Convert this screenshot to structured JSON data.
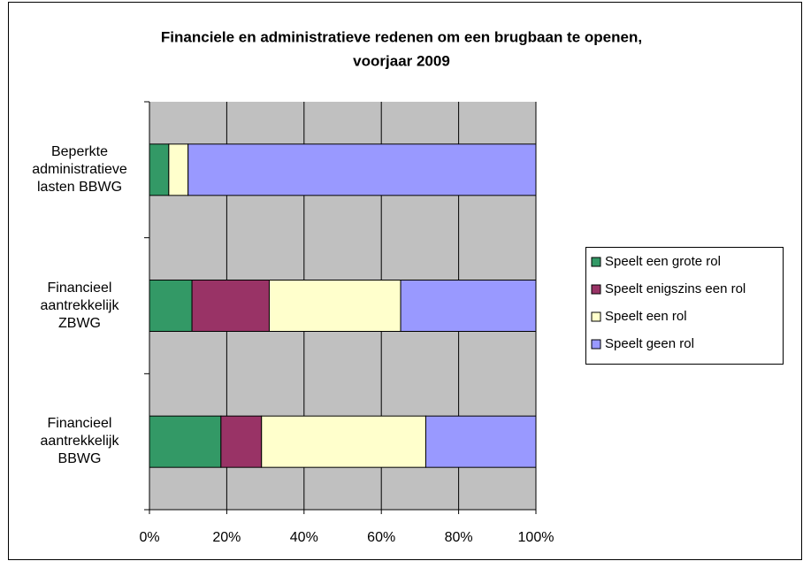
{
  "chart_data": {
    "type": "stacked_barh",
    "title": [
      "Financiele en administratieve redenen om een brugbaan te openen,",
      "voorjaar 2009"
    ],
    "categories": [
      "Beperkte administratieve lasten BBWG",
      "Financieel aantrekkelijk ZBWG",
      "Financieel aantrekkelijk BBWG"
    ],
    "series": [
      {
        "name": "Speelt een grote rol",
        "color": "#339966",
        "values": [
          5,
          11,
          18.5
        ]
      },
      {
        "name": "Speelt enigszins een rol",
        "color": "#993366",
        "values": [
          0,
          20,
          10.5
        ]
      },
      {
        "name": "Speelt een rol",
        "color": "#ffffcc",
        "values": [
          5,
          34,
          42.5
        ]
      },
      {
        "name": "Speelt geen rol",
        "color": "#9999ff",
        "values": [
          90,
          35,
          28.5
        ]
      }
    ],
    "xlim": [
      0,
      100
    ],
    "xticks": [
      {
        "value": 0,
        "label": "0%"
      },
      {
        "value": 20,
        "label": "20%"
      },
      {
        "value": 40,
        "label": "40%"
      },
      {
        "value": 60,
        "label": "60%"
      },
      {
        "value": 80,
        "label": "80%"
      },
      {
        "value": 100,
        "label": "100%"
      }
    ],
    "grid": true,
    "legend": "right"
  }
}
